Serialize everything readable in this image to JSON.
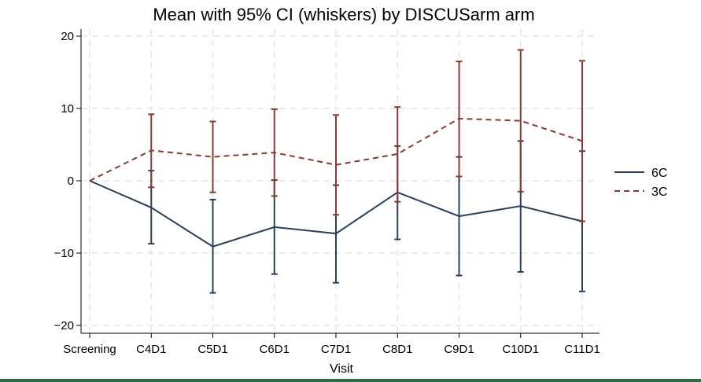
{
  "chart_data": {
    "type": "line",
    "title": "Mean with 95% CI (whiskers) by DISCUSarm arm",
    "xlabel": "Visit",
    "ylabel": "",
    "categories": [
      "Screening",
      "C4D1",
      "C5D1",
      "C6D1",
      "C7D1",
      "C8D1",
      "C9D1",
      "C10D1",
      "C11D1"
    ],
    "ylim": [
      -21,
      21
    ],
    "yticks": [
      -20,
      -10,
      0,
      10,
      20
    ],
    "ytick_labels": [
      "−20",
      "−10",
      "0",
      "10",
      "20"
    ],
    "grid": true,
    "legend_position": "right",
    "series": [
      {
        "name": "6C",
        "color": "#2b3f5c",
        "line_style": "solid",
        "values": [
          0,
          -3.7,
          -9.1,
          -6.4,
          -7.3,
          -1.6,
          -4.9,
          -3.5,
          -5.6
        ],
        "ci_lower": [
          0,
          -8.7,
          -15.5,
          -12.9,
          -14.1,
          -8.1,
          -13.1,
          -12.6,
          -15.3
        ],
        "ci_upper": [
          0,
          1.4,
          -2.6,
          0.1,
          -0.6,
          4.8,
          3.3,
          5.5,
          4.1
        ]
      },
      {
        "name": "3C",
        "color": "#8b3a32",
        "line_style": "dashed",
        "values": [
          0,
          4.2,
          3.3,
          3.9,
          2.2,
          3.7,
          8.6,
          8.3,
          5.5
        ],
        "ci_lower": [
          0,
          -0.9,
          -1.6,
          -2.1,
          -4.7,
          -2.9,
          0.6,
          -1.5,
          -5.6
        ],
        "ci_upper": [
          0,
          9.2,
          8.2,
          9.9,
          9.1,
          10.2,
          16.5,
          18.1,
          16.6
        ]
      }
    ]
  }
}
